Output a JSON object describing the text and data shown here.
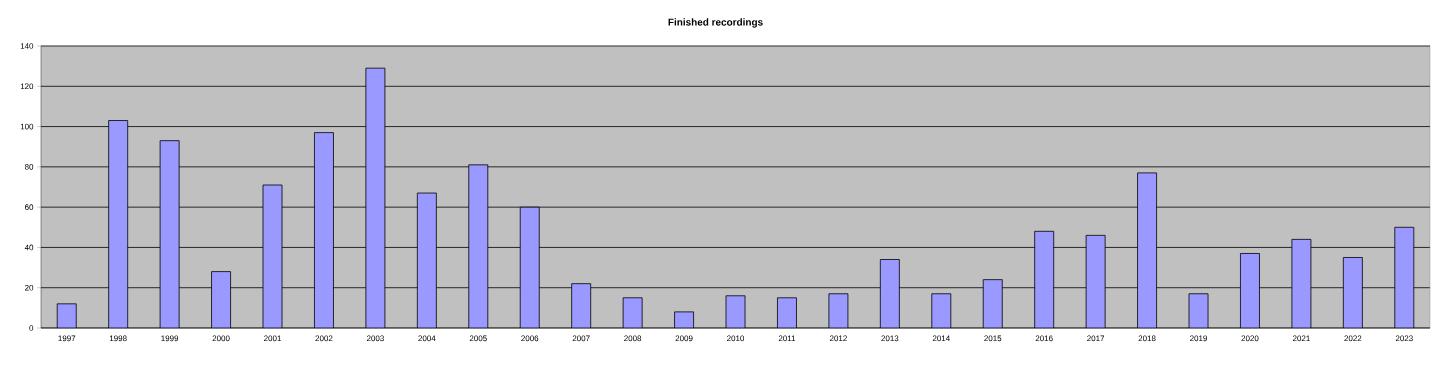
{
  "chart_data": {
    "type": "bar",
    "title": "Finished recordings",
    "categories": [
      "1997",
      "1998",
      "1999",
      "2000",
      "2001",
      "2002",
      "2003",
      "2004",
      "2005",
      "2006",
      "2007",
      "2008",
      "2009",
      "2010",
      "2011",
      "2012",
      "2013",
      "2014",
      "2015",
      "2016",
      "2017",
      "2018",
      "2019",
      "2020",
      "2021",
      "2022",
      "2023"
    ],
    "values": [
      12,
      103,
      93,
      28,
      71,
      97,
      129,
      67,
      81,
      60,
      22,
      15,
      8,
      16,
      15,
      17,
      34,
      17,
      24,
      48,
      46,
      77,
      17,
      37,
      44,
      35,
      50
    ],
    "color": "#9999ff",
    "ylim": [
      0,
      140
    ],
    "yticks": [
      0,
      20,
      40,
      60,
      80,
      100,
      120,
      140
    ],
    "grid": "y"
  }
}
